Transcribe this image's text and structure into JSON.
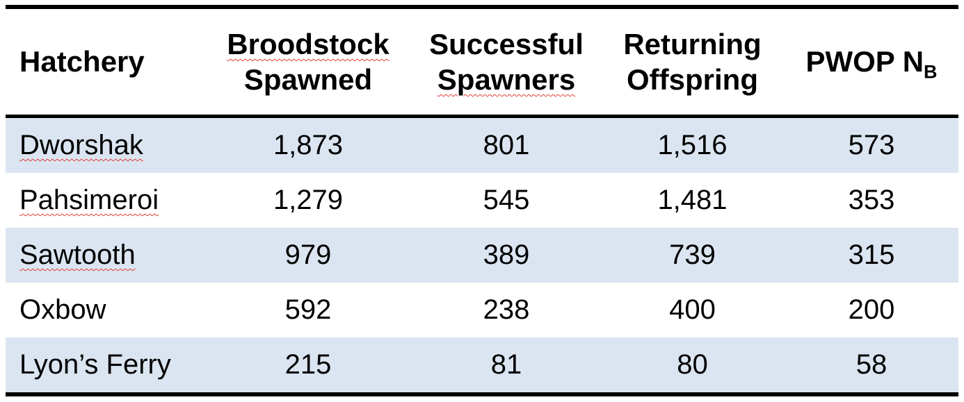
{
  "table": {
    "header": {
      "hatchery": "Hatchery",
      "broodstock_line1": "Broodstock",
      "broodstock_line2": "Spawned",
      "successful_line1": "Successful",
      "successful_line2": "Spawners",
      "returning_line1": "Returning",
      "returning_line2": "Offspring",
      "pwop_main": "PWOP N",
      "pwop_sub": "B"
    },
    "rows": [
      {
        "name": "Dworshak",
        "values": [
          "1,873",
          "801",
          "1,516",
          "573"
        ]
      },
      {
        "name": "Pahsimeroi",
        "values": [
          "1,279",
          "545",
          "1,481",
          "353"
        ]
      },
      {
        "name": "Sawtooth",
        "values": [
          "979",
          "389",
          "739",
          "315"
        ]
      },
      {
        "name": "Oxbow",
        "values": [
          "592",
          "238",
          "400",
          "200"
        ]
      },
      {
        "name": "Lyon’s Ferry",
        "values": [
          "215",
          "81",
          "80",
          "58"
        ]
      }
    ],
    "colors": {
      "banded_row_background": "#dbe5f1",
      "border": "#000000",
      "text": "#000000",
      "spellcheck_underline": "#e03c31"
    }
  }
}
